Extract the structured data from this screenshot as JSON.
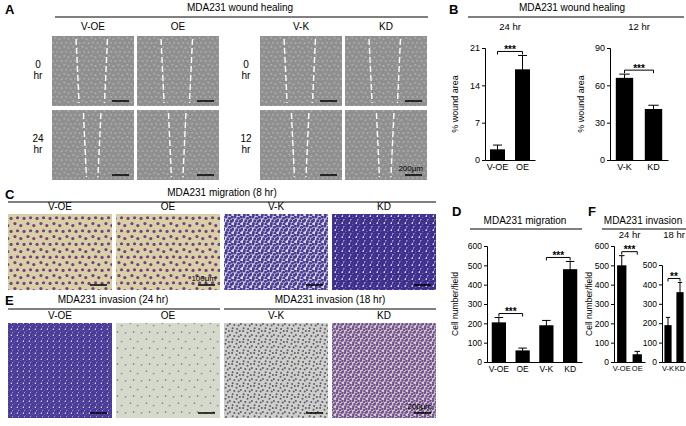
{
  "image_panels": [
    {
      "label": "A",
      "titles": [
        "MDA231 wound healing"
      ],
      "columns": [
        "V-OE",
        "OE",
        "V-K",
        "KD"
      ],
      "row_labels": [
        [
          "0 hr",
          "24 hr"
        ],
        [
          "0 hr",
          "12 hr"
        ]
      ],
      "scale_label": "200μm"
    },
    {
      "label": "C",
      "titles": [
        "MDA231 migration (8 hr)"
      ],
      "columns": [
        "V-OE",
        "OE",
        "V-K",
        "KD"
      ],
      "scale_label": "100μm"
    },
    {
      "label": "E",
      "titles": [
        "MDA231 invasion (24 hr)",
        "MDA231 invasion (18 hr)"
      ],
      "columns": [
        "V-OE",
        "OE",
        "V-K",
        "KD"
      ],
      "scale_label": "200μm"
    }
  ],
  "chart_panels": [
    {
      "label": "B",
      "title": "MDA231 wound healing"
    },
    {
      "label": "D",
      "title": "MDA231 migration"
    },
    {
      "label": "F",
      "title": "MDA231 invasion"
    }
  ],
  "chart_data": [
    {
      "type": "bar",
      "subtitle": "24 hr",
      "y_label": "% wound area",
      "categories": [
        "V-OE",
        "OE"
      ],
      "values": [
        2,
        17
      ],
      "errors": [
        0.8,
        2.6
      ],
      "color": "#000000",
      "ylim": [
        0,
        21
      ],
      "yticks": [
        0,
        7,
        14,
        21
      ],
      "annotations": [
        {
          "text": "***",
          "from": "V-OE",
          "to": "OE"
        }
      ]
    },
    {
      "type": "bar",
      "subtitle": "12 hr",
      "y_label": "% wound area",
      "categories": [
        "V-K",
        "KD"
      ],
      "values": [
        66,
        41
      ],
      "errors": [
        3,
        3
      ],
      "color": "#000000",
      "ylim": [
        0,
        90
      ],
      "yticks": [
        0,
        30,
        60,
        90
      ],
      "annotations": [
        {
          "text": "***",
          "from": "V-K",
          "to": "KD"
        }
      ]
    },
    {
      "type": "bar",
      "y_label": "Cell number/field",
      "categories": [
        "V-OE",
        "OE",
        "V-K",
        "KD"
      ],
      "values": [
        205,
        60,
        190,
        480
      ],
      "errors": [
        25,
        12,
        25,
        40
      ],
      "color": "#000000",
      "ylim": [
        0,
        600
      ],
      "yticks": [
        0,
        100,
        200,
        300,
        400,
        500,
        600
      ],
      "annotations": [
        {
          "text": "***",
          "from": "V-OE",
          "to": "OE"
        },
        {
          "text": "***",
          "from": "V-K",
          "to": "KD"
        }
      ]
    },
    {
      "type": "bar",
      "subtitle": "24 hr",
      "y_label": "Cell number/field",
      "categories": [
        "V-OE",
        "OE"
      ],
      "values": [
        500,
        40
      ],
      "errors": [
        50,
        15
      ],
      "color": "#000000",
      "ylim": [
        0,
        600
      ],
      "yticks": [
        0,
        100,
        200,
        300,
        400,
        500,
        600
      ],
      "annotations": [
        {
          "text": "***",
          "from": "V-OE",
          "to": "OE"
        }
      ]
    },
    {
      "type": "bar",
      "subtitle": "18 hr",
      "categories": [
        "V-K",
        "KD"
      ],
      "values": [
        190,
        360
      ],
      "errors": [
        40,
        50
      ],
      "color": "#000000",
      "ylim": [
        0,
        500
      ],
      "yticks": [
        0,
        100,
        200,
        300,
        400,
        500
      ],
      "annotations": [
        {
          "text": "**",
          "from": "V-K",
          "to": "KD"
        }
      ]
    }
  ]
}
